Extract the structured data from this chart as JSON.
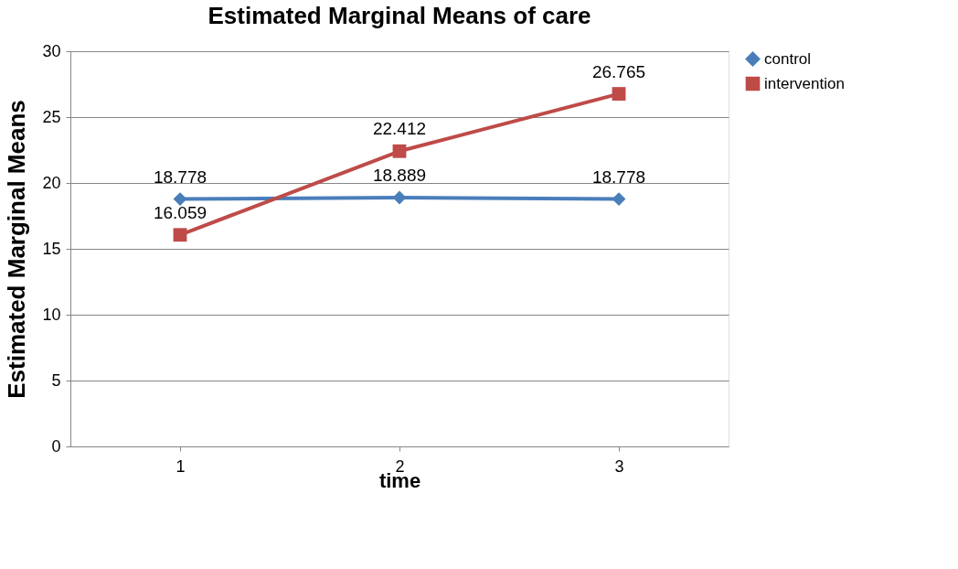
{
  "chart_data": {
    "type": "line",
    "title": "Estimated Marginal Means of care",
    "xlabel": "time",
    "ylabel": "Estimated Marginal Means",
    "categories": [
      "1",
      "2",
      "3"
    ],
    "series": [
      {
        "name": "control",
        "color": "#4a7ebb",
        "marker": "diamond",
        "values": [
          18.778,
          18.889,
          18.778
        ]
      },
      {
        "name": "intervention",
        "color": "#be4b48",
        "marker": "square",
        "values": [
          16.059,
          22.412,
          26.765
        ]
      }
    ],
    "ylim": [
      0,
      30
    ],
    "yticks": [
      0,
      5,
      10,
      15,
      20,
      25,
      30
    ],
    "grid": "y",
    "legend": "right",
    "data_labels": true,
    "line_style": "solid"
  }
}
